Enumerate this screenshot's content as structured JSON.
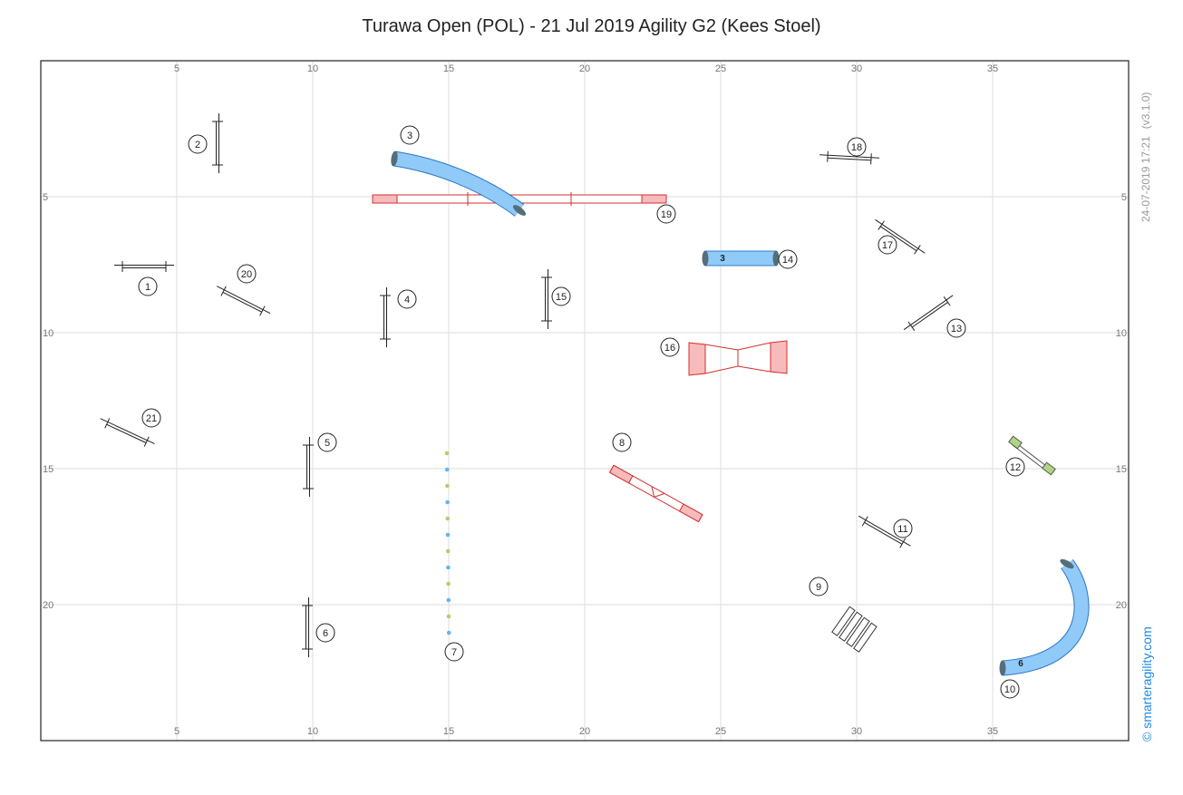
{
  "title": "Turawa Open (POL) - 21 Jul 2019 Agility G2 (Kees Stoel)",
  "timestamp": "24-07-2019 17:21",
  "version": "(v3.1.0)",
  "brand": "© smarteragility.com",
  "grid": {
    "x_ticks": [
      "5",
      "10",
      "15",
      "20",
      "25",
      "30",
      "35"
    ],
    "y_ticks": [
      "5",
      "10",
      "15",
      "20"
    ],
    "line_color": "#dddddd",
    "border_color": "#222222"
  },
  "colors": {
    "tunnel": "#90caf9",
    "tunnel_stroke": "#1565c0",
    "tunnel_end": "#546e7a",
    "contact": "#f8bbbb",
    "contact_stroke": "#d32f2f",
    "weave_yellow": "#c5c56a",
    "weave_blue": "#64b5f6",
    "spread_jump": "#aed581"
  },
  "tunnels": [
    {
      "label": "",
      "name": "tunnel-3"
    },
    {
      "label": "3",
      "name": "tunnel-14"
    },
    {
      "label": "6",
      "name": "tunnel-10"
    }
  ],
  "markers": [
    {
      "n": "1"
    },
    {
      "n": "2"
    },
    {
      "n": "3"
    },
    {
      "n": "4"
    },
    {
      "n": "5"
    },
    {
      "n": "6"
    },
    {
      "n": "7"
    },
    {
      "n": "8"
    },
    {
      "n": "9"
    },
    {
      "n": "10"
    },
    {
      "n": "11"
    },
    {
      "n": "12"
    },
    {
      "n": "13"
    },
    {
      "n": "14"
    },
    {
      "n": "15"
    },
    {
      "n": "16"
    },
    {
      "n": "17"
    },
    {
      "n": "18"
    },
    {
      "n": "19"
    },
    {
      "n": "20"
    },
    {
      "n": "21"
    }
  ]
}
